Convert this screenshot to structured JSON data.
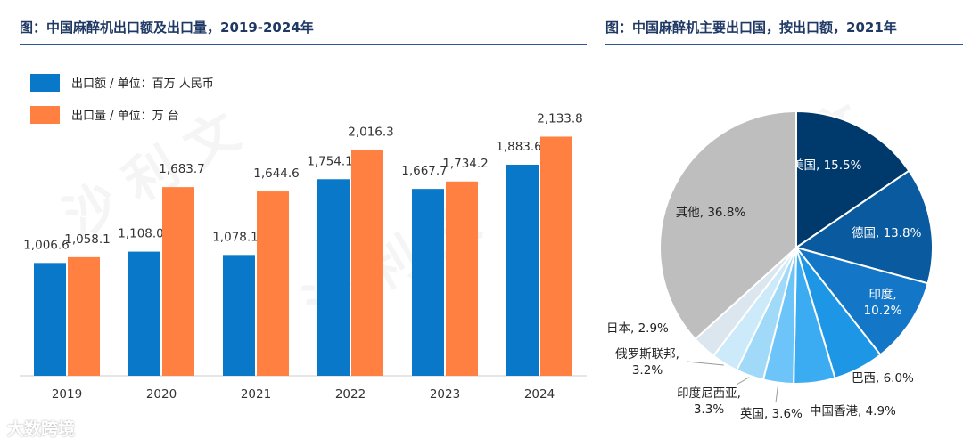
{
  "left_chart": {
    "title": "图：中国麻醉机出口额及出口量，2019-2024年"
  },
  "right_chart": {
    "title": "图：中国麻醉机主要出口国，按出口额，2021年"
  },
  "brand_text": "大数跨境",
  "colors": {
    "series_value": "#0a78c8",
    "series_volume": "#ff8040",
    "title": "#1f3864",
    "rule": "#2f5597"
  },
  "chart_data": [
    {
      "type": "bar",
      "title": "图：中国麻醉机出口额及出口量，2019-2024年",
      "categories": [
        "2019",
        "2020",
        "2021",
        "2022",
        "2023",
        "2024"
      ],
      "series": [
        {
          "name": "出口额 / 单位：百万 人民币",
          "values": [
            1006.6,
            1108.0,
            1078.1,
            1754.1,
            1667.7,
            1883.6
          ],
          "labels": [
            "1,006.6",
            "1,108.0",
            "1,078.1",
            "1,754.1",
            "1,667.7",
            "1,883.6"
          ]
        },
        {
          "name": "出口量 / 单位：万 台",
          "values": [
            1058.1,
            1683.7,
            1644.6,
            2016.3,
            1734.2,
            2133.8
          ],
          "labels": [
            "1,058.1",
            "1,683.7",
            "1,644.6",
            "2,016.3",
            "1,734.2",
            "2,133.8"
          ]
        }
      ],
      "ylim": [
        0,
        2400
      ],
      "grid": false,
      "legend": "top-left"
    },
    {
      "type": "pie",
      "title": "图：中国麻醉机主要出口国，按出口额，2021年",
      "slices": [
        {
          "label": "美国, 15.5%",
          "value": 15.5,
          "color": "#003a6c"
        },
        {
          "label": "德国, 13.8%",
          "value": 13.8,
          "color": "#0a5aa0"
        },
        {
          "label": "印度,\n10.2%",
          "value": 10.2,
          "color": "#1476c6"
        },
        {
          "label": "巴西, 6.0%",
          "value": 6.0,
          "color": "#1e96e6"
        },
        {
          "label": "中国香港, 4.9%",
          "value": 4.9,
          "color": "#3cacf2"
        },
        {
          "label": "英国, 3.6%",
          "value": 3.6,
          "color": "#6cc4f8"
        },
        {
          "label": "印度尼西亚,\n3.3%",
          "value": 3.3,
          "color": "#a0daf8"
        },
        {
          "label": "俄罗斯联邦,\n3.2%",
          "value": 3.2,
          "color": "#cceafa"
        },
        {
          "label": "日本, 2.9%",
          "value": 2.9,
          "color": "#dce6ee"
        },
        {
          "label": "其他, 36.8%",
          "value": 36.8,
          "color": "#bebebe"
        }
      ]
    }
  ]
}
